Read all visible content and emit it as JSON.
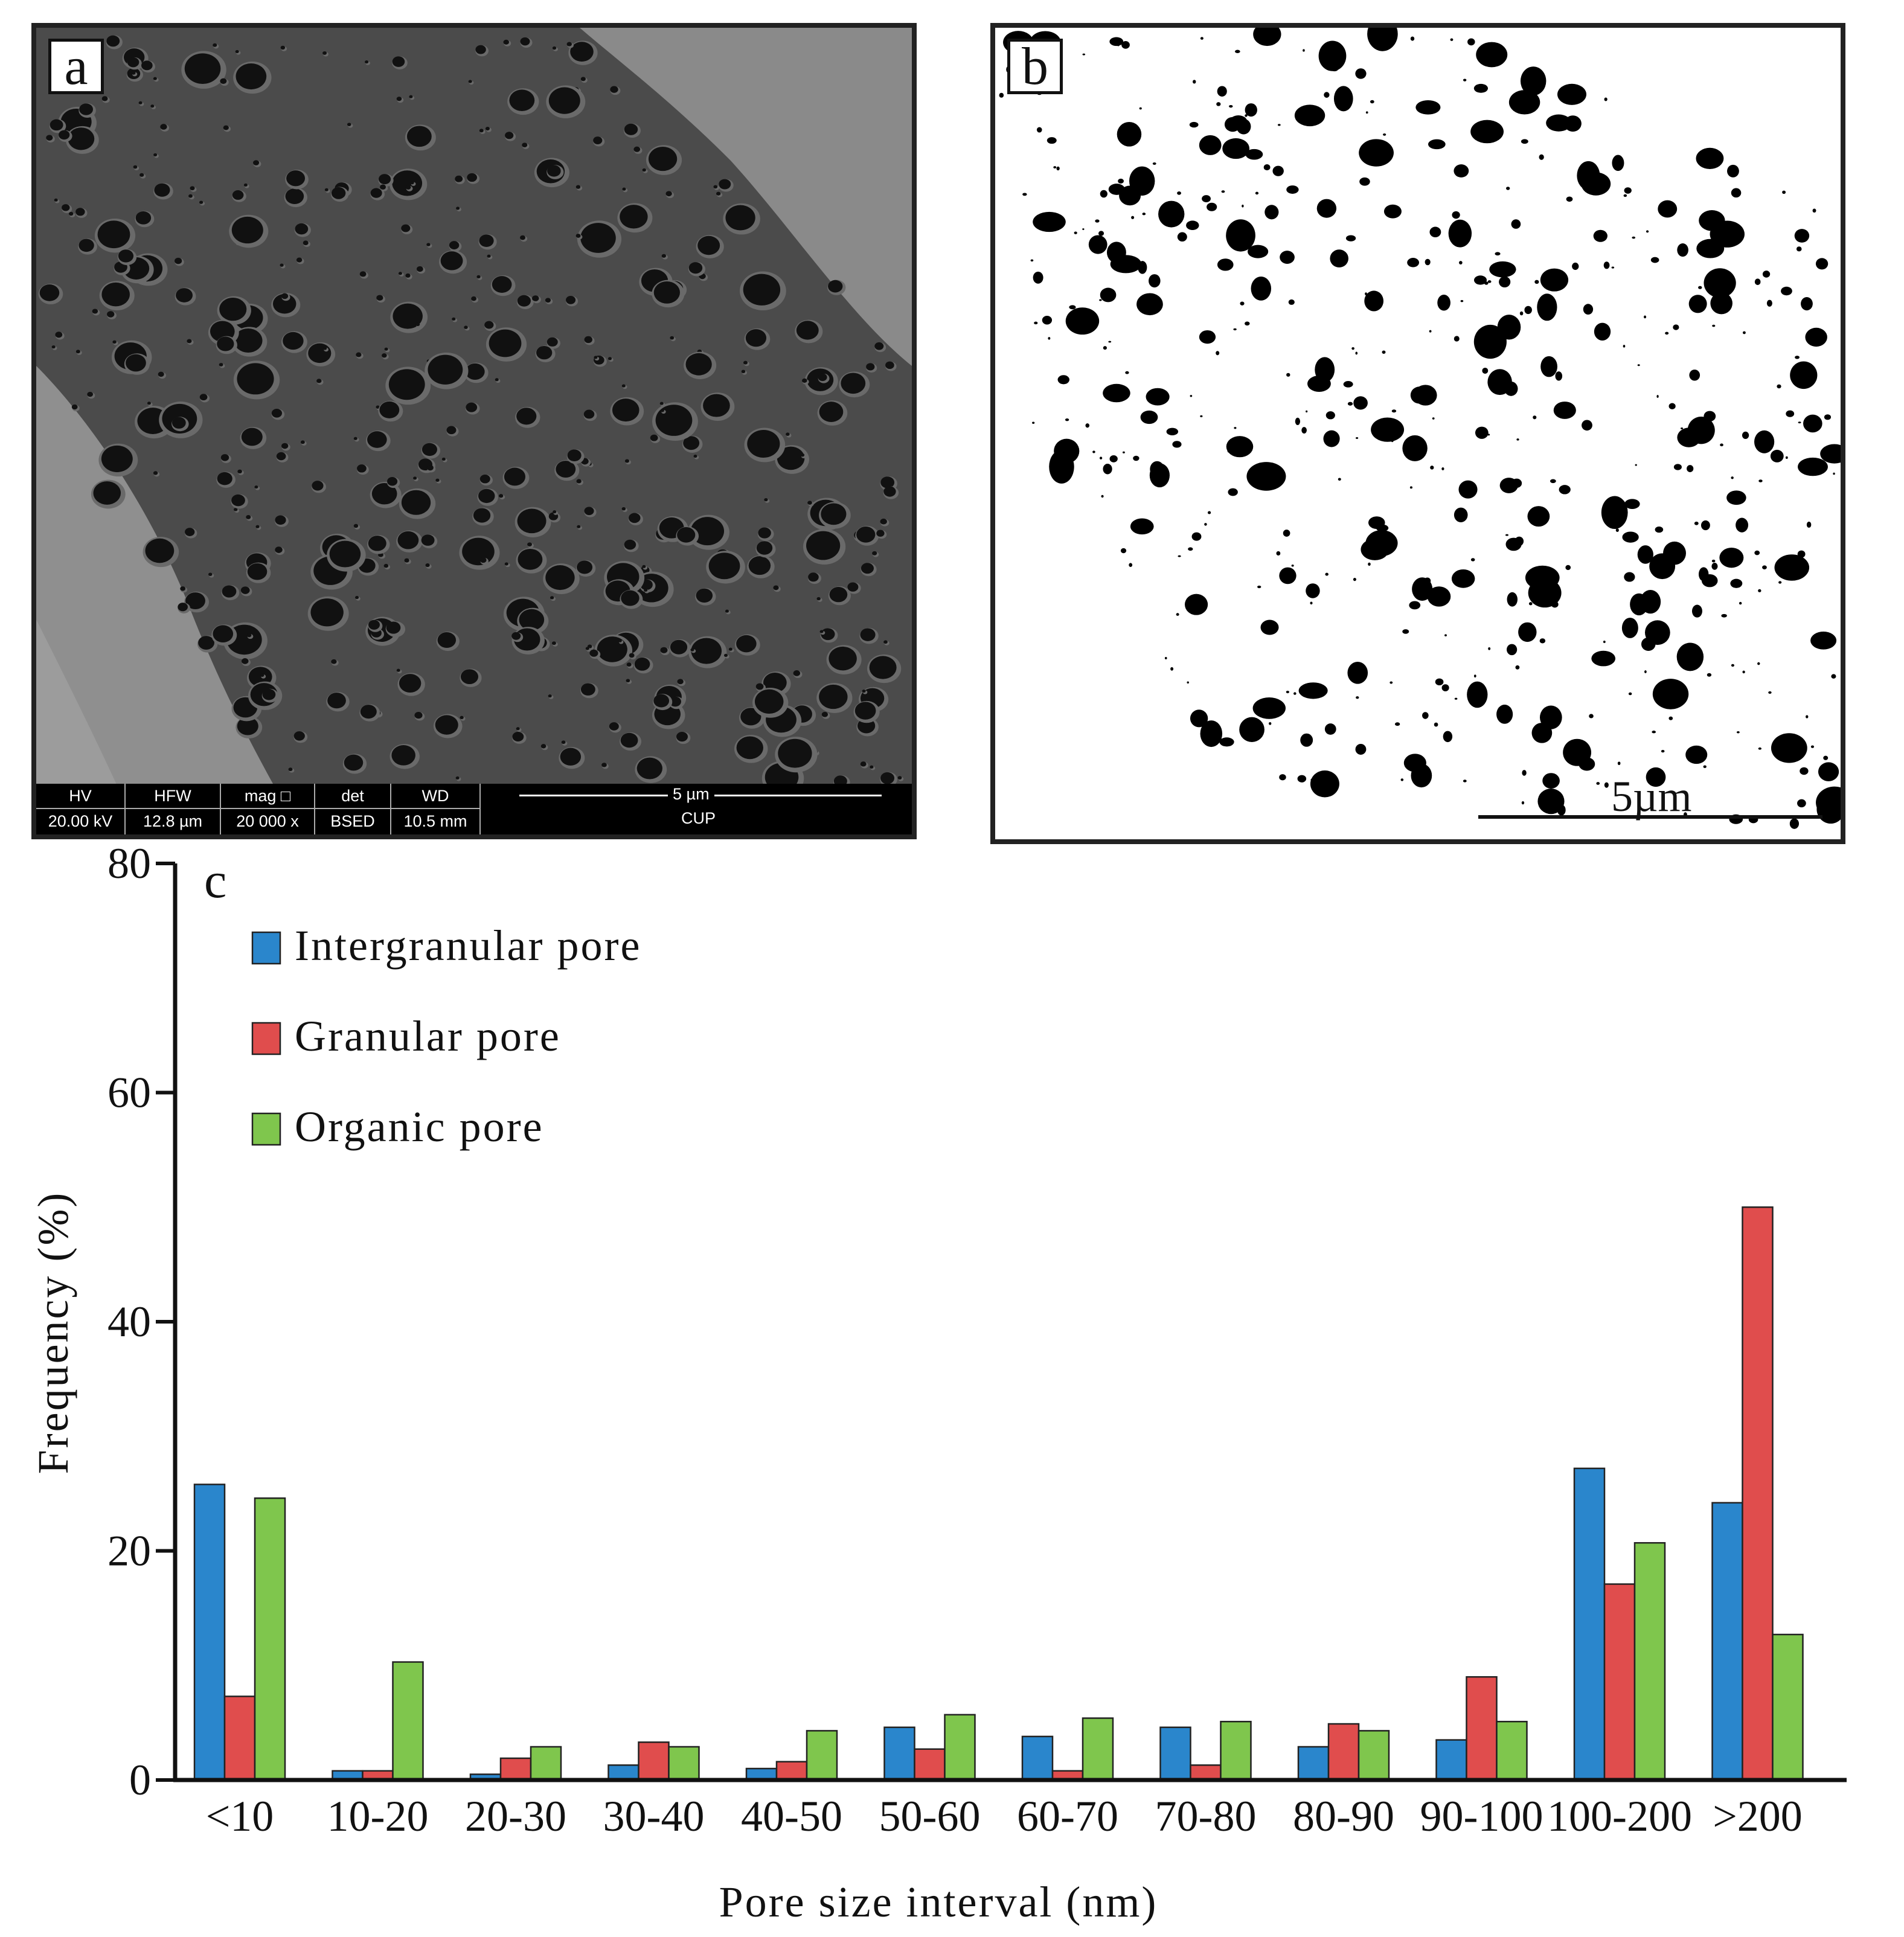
{
  "panel_a": {
    "label": "a",
    "sem_bar": {
      "fields": [
        {
          "key": "HV",
          "value": "20.00 kV"
        },
        {
          "key": "HFW",
          "value": "12.8 µm"
        },
        {
          "key": "mag □",
          "value": "20 000 x"
        },
        {
          "key": "det",
          "value": "BSED"
        },
        {
          "key": "WD",
          "value": "10.5 mm"
        }
      ],
      "scale_label": "5 µm",
      "lab": "CUP"
    }
  },
  "panel_b": {
    "label": "b",
    "scale_label": "5µm"
  },
  "panel_c": {
    "label": "c"
  },
  "colors": {
    "intergranular": "#2a86cc",
    "granular": "#e04d4d",
    "organic": "#7fc64d",
    "axis": "#111111"
  },
  "chart_data": {
    "type": "bar",
    "title": "",
    "xlabel": "Pore size interval (nm)",
    "ylabel": "Frequency (%)",
    "ylim": [
      0,
      80
    ],
    "yticks": [
      0,
      20,
      40,
      60,
      80
    ],
    "grid": false,
    "legend_position": "top-left",
    "categories": [
      "<10",
      "10-20",
      "20-30",
      "30-40",
      "40-50",
      "50-60",
      "60-70",
      "70-80",
      "80-90",
      "90-100",
      "100-200",
      ">200"
    ],
    "series": [
      {
        "name": "Intergranular  pore",
        "color": "#2a86cc",
        "values": [
          25.8,
          0.8,
          0.5,
          1.3,
          1.0,
          4.6,
          3.8,
          4.6,
          2.9,
          3.5,
          27.2,
          24.2
        ]
      },
      {
        "name": "Granular pore",
        "color": "#e04d4d",
        "values": [
          7.3,
          0.8,
          1.9,
          3.3,
          1.6,
          2.7,
          0.8,
          1.3,
          4.9,
          9.0,
          17.1,
          50.0
        ]
      },
      {
        "name": "Organic pore",
        "color": "#7fc64d",
        "values": [
          24.6,
          10.3,
          2.9,
          2.9,
          4.3,
          5.7,
          5.4,
          5.1,
          4.3,
          5.1,
          20.7,
          12.7
        ]
      }
    ]
  }
}
